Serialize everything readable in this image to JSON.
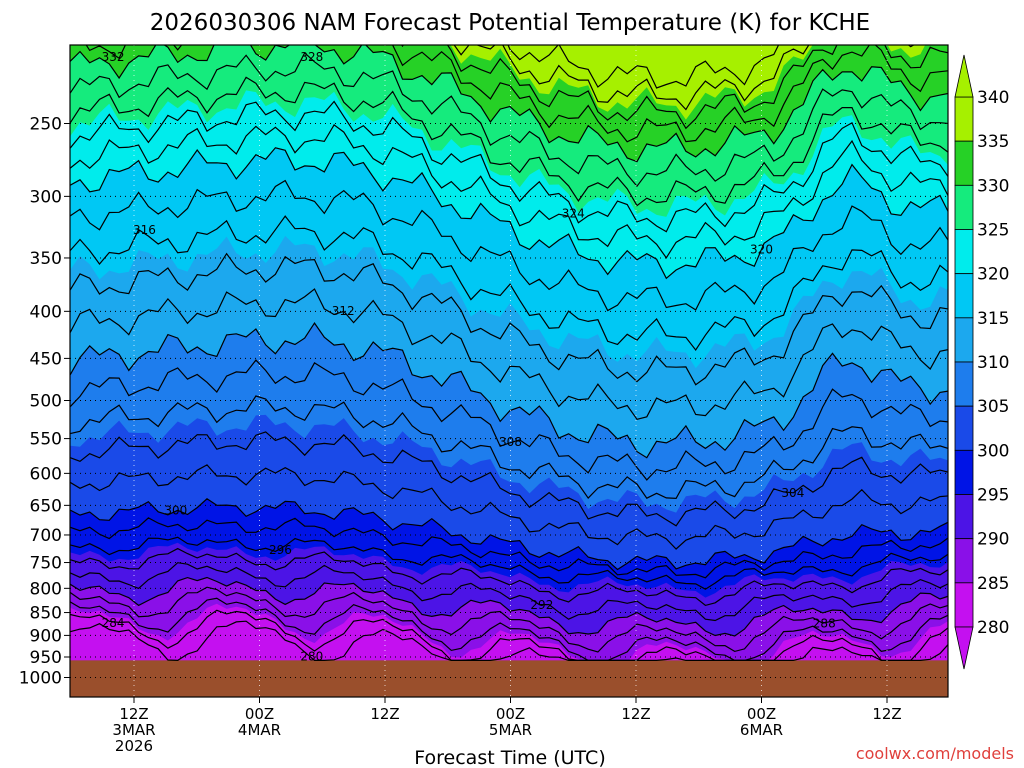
{
  "chart_data": {
    "type": "heatmap",
    "title": "2026030306 NAM Forecast Potential Temperature (K) for KCHE",
    "xlabel": "Forecast Time (UTC)",
    "credit": "coolwx.com/models",
    "y_axis": {
      "scale": "pressure",
      "range": [
        1000,
        200
      ],
      "ticks": [
        250,
        300,
        350,
        400,
        450,
        500,
        550,
        600,
        650,
        700,
        750,
        800,
        850,
        900,
        950,
        1000
      ]
    },
    "x_ticks": [
      {
        "lines": [
          "12Z",
          "3MAR",
          "2026"
        ]
      },
      {
        "lines": [
          "00Z",
          "4MAR"
        ]
      },
      {
        "lines": [
          "12Z"
        ]
      },
      {
        "lines": [
          "00Z",
          "5MAR"
        ]
      },
      {
        "lines": [
          "12Z"
        ]
      },
      {
        "lines": [
          "00Z",
          "6MAR"
        ]
      },
      {
        "lines": [
          "12Z"
        ]
      }
    ],
    "colorbar": {
      "ticks": [
        340,
        335,
        330,
        325,
        320,
        315,
        310,
        305,
        300,
        295,
        290,
        285,
        280
      ],
      "bins": [
        {
          "lo": 335,
          "hi": 340,
          "color": "#a6f000"
        },
        {
          "lo": 330,
          "hi": 335,
          "color": "#26d126"
        },
        {
          "lo": 325,
          "hi": 330,
          "color": "#15eb7d"
        },
        {
          "lo": 320,
          "hi": 325,
          "color": "#00ecec"
        },
        {
          "lo": 315,
          "hi": 320,
          "color": "#00c8f4"
        },
        {
          "lo": 310,
          "hi": 315,
          "color": "#1ca8ee"
        },
        {
          "lo": 305,
          "hi": 310,
          "color": "#1e7ded"
        },
        {
          "lo": 300,
          "hi": 305,
          "color": "#1a4ae8"
        },
        {
          "lo": 295,
          "hi": 300,
          "color": "#0014e6"
        },
        {
          "lo": 290,
          "hi": 295,
          "color": "#4c14e6"
        },
        {
          "lo": 285,
          "hi": 290,
          "color": "#8a10e8"
        },
        {
          "lo": 280,
          "hi": 285,
          "color": "#c410f0"
        }
      ]
    },
    "ground_color": "#9a4f2c",
    "contour_labels": [
      "332",
      "328",
      "324",
      "320",
      "316",
      "312",
      "308",
      "304",
      "300",
      "296",
      "292",
      "288",
      "284",
      "280"
    ],
    "colors": {
      "contour": "#000000",
      "grid": "#000000"
    }
  }
}
